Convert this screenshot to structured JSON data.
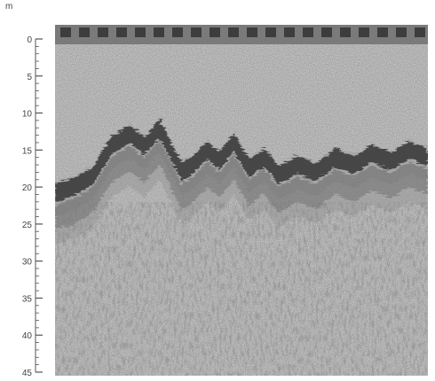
{
  "axis": {
    "unit": "m",
    "min": 0,
    "max": 45,
    "major_step": 5,
    "minor_step": 1,
    "tick_labels": [
      "0",
      "5",
      "10",
      "15",
      "20",
      "25",
      "30",
      "35",
      "40",
      "45"
    ]
  },
  "colors": {
    "background": "#ffffff",
    "paper": "#d8d8d8",
    "echo_dark": "#3a3a3a",
    "axis": "#555555"
  },
  "echogram": {
    "description_tag": "echosounder-trace",
    "surface_band": true,
    "seabed_profile_depth_m": [
      {
        "x": 0.0,
        "d": 19.8
      },
      {
        "x": 0.05,
        "d": 19.0
      },
      {
        "x": 0.1,
        "d": 17.5
      },
      {
        "x": 0.15,
        "d": 13.5
      },
      {
        "x": 0.2,
        "d": 11.8
      },
      {
        "x": 0.24,
        "d": 13.5
      },
      {
        "x": 0.28,
        "d": 11.0
      },
      {
        "x": 0.31,
        "d": 14.0
      },
      {
        "x": 0.34,
        "d": 17.0
      },
      {
        "x": 0.37,
        "d": 16.0
      },
      {
        "x": 0.41,
        "d": 14.0
      },
      {
        "x": 0.44,
        "d": 15.5
      },
      {
        "x": 0.48,
        "d": 13.0
      },
      {
        "x": 0.52,
        "d": 16.5
      },
      {
        "x": 0.56,
        "d": 15.0
      },
      {
        "x": 0.6,
        "d": 17.5
      },
      {
        "x": 0.65,
        "d": 16.0
      },
      {
        "x": 0.7,
        "d": 17.0
      },
      {
        "x": 0.75,
        "d": 15.0
      },
      {
        "x": 0.8,
        "d": 16.0
      },
      {
        "x": 0.85,
        "d": 14.5
      },
      {
        "x": 0.9,
        "d": 15.5
      },
      {
        "x": 0.95,
        "d": 14.0
      },
      {
        "x": 1.0,
        "d": 15.0
      }
    ]
  }
}
